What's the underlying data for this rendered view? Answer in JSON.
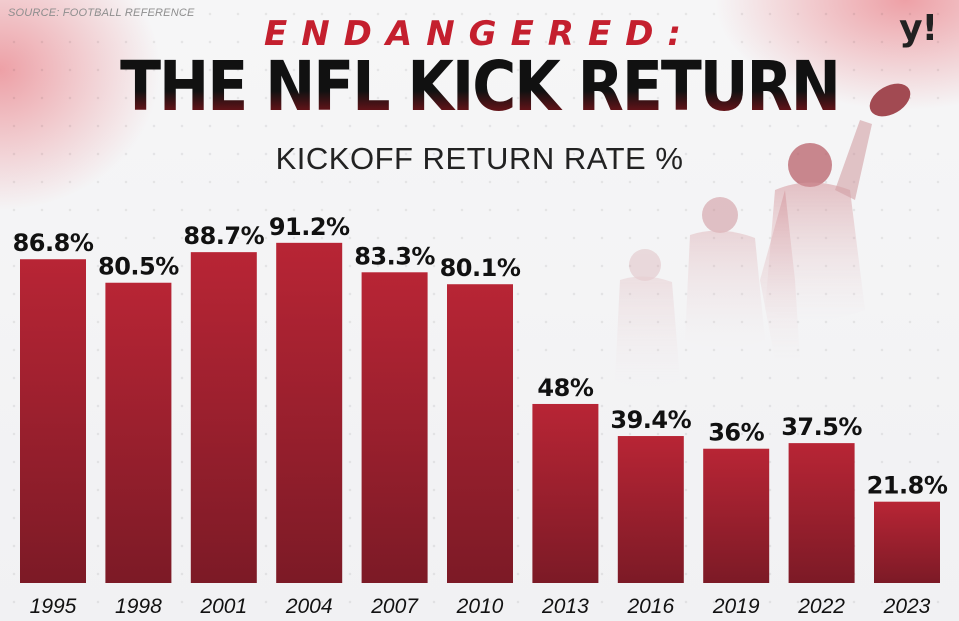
{
  "header": {
    "source": "SOURCE: FOOTBALL REFERENCE",
    "logo": "y!",
    "kicker": "ENDANGERED:",
    "title": "THE NFL KICK RETURN",
    "subtitle": "KICKOFF RETURN RATE %"
  },
  "colors": {
    "bar_top": "#b82535",
    "bar_bottom": "#7c1a26",
    "accent": "#c41f2e"
  },
  "chart_data": {
    "type": "bar",
    "title": "KICKOFF RETURN RATE %",
    "categories": [
      "1995",
      "1998",
      "2001",
      "2004",
      "2007",
      "2010",
      "2013",
      "2016",
      "2019",
      "2022",
      "2023"
    ],
    "values": [
      86.8,
      80.5,
      88.7,
      91.2,
      83.3,
      80.1,
      48,
      39.4,
      36,
      37.5,
      21.8
    ],
    "labels": [
      "86.8%",
      "80.5%",
      "88.7%",
      "91.2%",
      "83.3%",
      "80.1%",
      "48%",
      "39.4%",
      "36%",
      "37.5%",
      "21.8%"
    ],
    "xlabel": "",
    "ylabel": "",
    "ylim": [
      0,
      100
    ],
    "grid": false,
    "legend": "none"
  }
}
